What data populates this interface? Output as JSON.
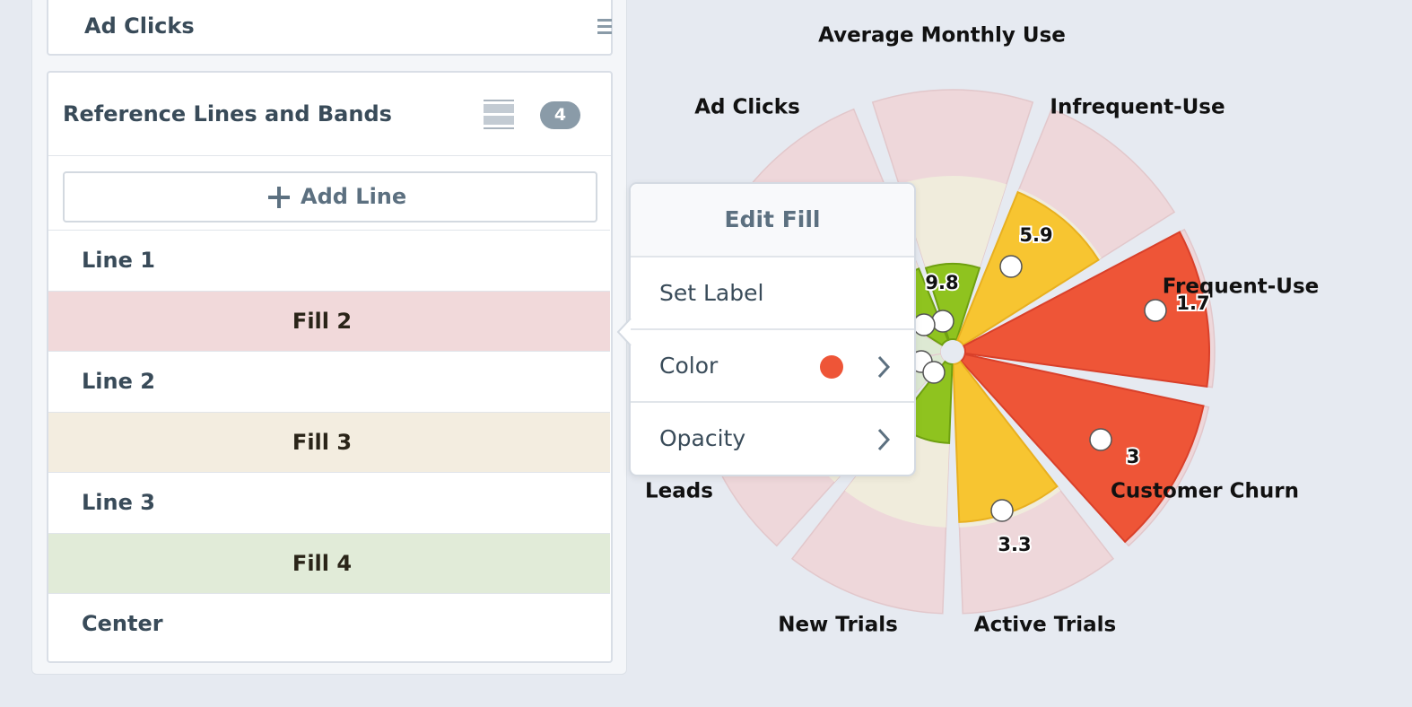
{
  "panel": {
    "top_card": "Ad Clicks",
    "section": {
      "title": "Reference Lines and Bands",
      "badge": 4,
      "add_button": "Add Line",
      "rows": [
        "Line 1",
        "Fill 2",
        "Line 2",
        "Fill 3",
        "Line 3",
        "Fill 4",
        "Center"
      ]
    }
  },
  "popup": {
    "title": "Edit Fill",
    "items": [
      "Set Label",
      "Color",
      "Opacity"
    ]
  },
  "chart": {
    "categories": [
      "Average Monthly Use",
      "Ad Clicks",
      "Infrequent-Use",
      "Frequent-Use",
      "Customer Churn",
      "Active Trials",
      "New Trials",
      "Leads"
    ],
    "value_labels": [
      9.8,
      5.9,
      1.7,
      3,
      3.3
    ]
  }
}
